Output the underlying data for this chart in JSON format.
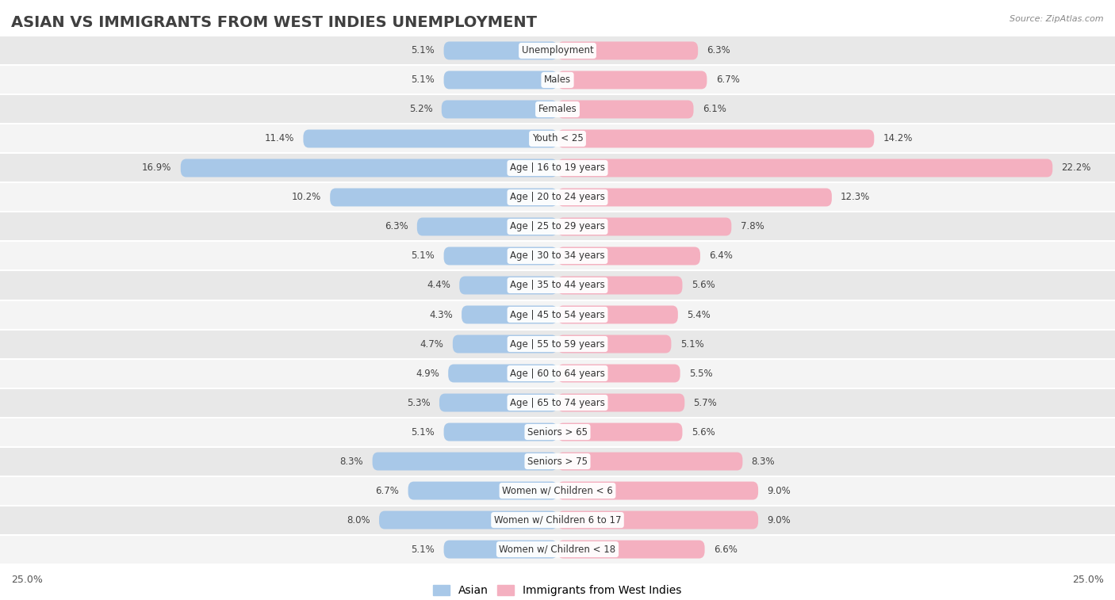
{
  "title": "ASIAN VS IMMIGRANTS FROM WEST INDIES UNEMPLOYMENT",
  "source": "Source: ZipAtlas.com",
  "categories": [
    "Unemployment",
    "Males",
    "Females",
    "Youth < 25",
    "Age | 16 to 19 years",
    "Age | 20 to 24 years",
    "Age | 25 to 29 years",
    "Age | 30 to 34 years",
    "Age | 35 to 44 years",
    "Age | 45 to 54 years",
    "Age | 55 to 59 years",
    "Age | 60 to 64 years",
    "Age | 65 to 74 years",
    "Seniors > 65",
    "Seniors > 75",
    "Women w/ Children < 6",
    "Women w/ Children 6 to 17",
    "Women w/ Children < 18"
  ],
  "asian_values": [
    5.1,
    5.1,
    5.2,
    11.4,
    16.9,
    10.2,
    6.3,
    5.1,
    4.4,
    4.3,
    4.7,
    4.9,
    5.3,
    5.1,
    8.3,
    6.7,
    8.0,
    5.1
  ],
  "west_indies_values": [
    6.3,
    6.7,
    6.1,
    14.2,
    22.2,
    12.3,
    7.8,
    6.4,
    5.6,
    5.4,
    5.1,
    5.5,
    5.7,
    5.6,
    8.3,
    9.0,
    9.0,
    6.6
  ],
  "asian_color": "#a8c8e8",
  "west_indies_color": "#f4b0c0",
  "asian_color_dark": "#88b4d8",
  "west_indies_color_dark": "#f090a8",
  "xlim": 25.0,
  "bar_height": 0.62,
  "row_color_even": "#e8e8e8",
  "row_color_odd": "#f4f4f4",
  "label_fontsize": 8.5,
  "value_fontsize": 8.5,
  "title_fontsize": 14,
  "legend_fontsize": 10,
  "category_label_fontsize": 8.5
}
